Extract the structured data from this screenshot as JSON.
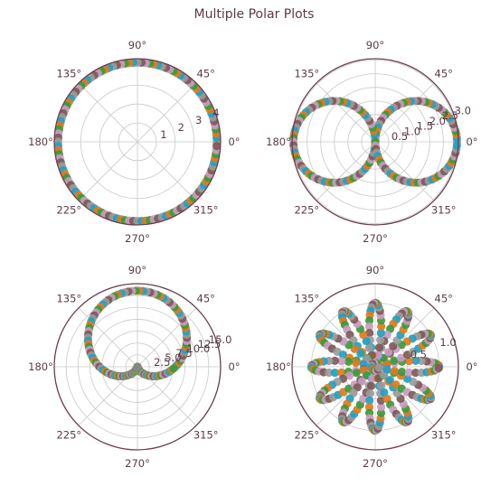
{
  "figure": {
    "title": "Multiple Polar Plots",
    "colors": [
      "#9a9a9a",
      "#1f9fc2",
      "#e07a1e",
      "#3a9a3a",
      "#c99ac0",
      "#7d5a57"
    ]
  },
  "chart_data": [
    {
      "type": "scatter",
      "projection": "polar",
      "equation_shape": "circle",
      "title": "",
      "theta_tick_labels": [
        "0°",
        "45°",
        "90°",
        "135°",
        "180°",
        "225°",
        "270°",
        "315°"
      ],
      "r_tick_labels": [
        "1",
        "2",
        "3",
        "4"
      ],
      "r_ticks": [
        1,
        2,
        3,
        4
      ],
      "rlim": [
        0,
        4.4
      ],
      "r_label_angle_deg": 22.5,
      "grid": true,
      "points": {
        "theta_deg_start": 0,
        "theta_deg_end": 360,
        "count": 120,
        "r": 4.2
      }
    },
    {
      "type": "scatter",
      "projection": "polar",
      "equation_shape": "lemniscate",
      "title": "",
      "theta_tick_labels": [
        "0°",
        "45°",
        "90°",
        "135°",
        "180°",
        "225°",
        "270°",
        "315°"
      ],
      "r_tick_labels": [
        "0.5",
        "1.0",
        "1.5",
        "2.0",
        "2.5",
        "3.0"
      ],
      "r_ticks": [
        0.5,
        1.0,
        1.5,
        2.0,
        2.5,
        3.0
      ],
      "rlim": [
        0,
        3.05
      ],
      "r_label_angle_deg": 22.5,
      "grid": true,
      "points": {
        "theta_deg_start": 0,
        "theta_deg_end": 360,
        "count": 140,
        "r_formula": "3*|cos(theta)|"
      }
    },
    {
      "type": "scatter",
      "projection": "polar",
      "equation_shape": "cardioid",
      "title": "",
      "theta_tick_labels": [
        "0°",
        "45°",
        "90°",
        "135°",
        "180°",
        "225°",
        "270°",
        "315°"
      ],
      "r_tick_labels": [
        "2.5",
        "5.0",
        "7.5",
        "10.0",
        "12.5",
        "15.0"
      ],
      "r_ticks": [
        2.5,
        5.0,
        7.5,
        10.0,
        12.5,
        15.0
      ],
      "rlim": [
        0,
        17.5
      ],
      "r_label_angle_deg": 22.5,
      "grid": true,
      "points": {
        "theta_deg_start": 0,
        "theta_deg_end": 360,
        "count": 130,
        "r_formula": "8*(1+sin(theta))"
      }
    },
    {
      "type": "scatter",
      "projection": "polar",
      "equation_shape": "rose",
      "title": "",
      "theta_tick_labels": [
        "0°",
        "45°",
        "90°",
        "135°",
        "180°",
        "225°",
        "270°",
        "315°"
      ],
      "r_tick_labels": [
        "0.5",
        "1.0"
      ],
      "r_ticks": [
        0.5,
        1.0
      ],
      "rlim": [
        0,
        1.3
      ],
      "r_label_angle_deg": 22.5,
      "grid": true,
      "points": {
        "theta_deg_start": 0,
        "theta_deg_end": 360,
        "count": 300,
        "r_formula": "|cos(6*theta)|"
      }
    }
  ]
}
